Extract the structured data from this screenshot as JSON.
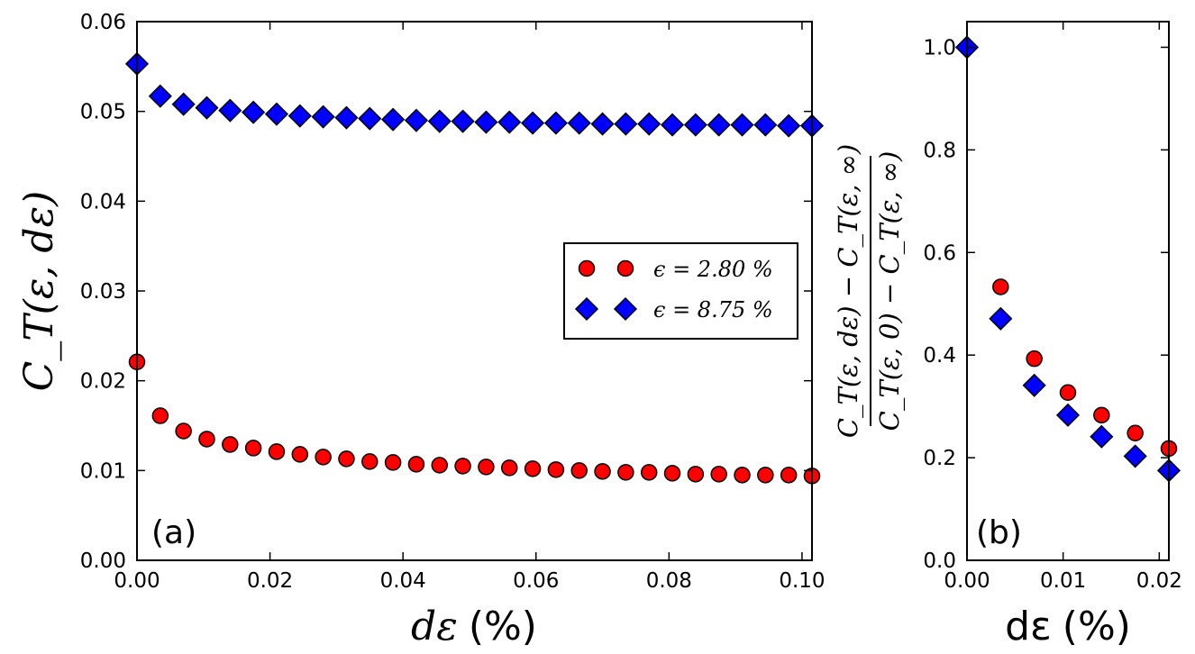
{
  "colors": {
    "series_a": "#ff0000",
    "series_b": "#0000ff",
    "edge": "#000000"
  },
  "chart_data": [
    {
      "panel": "(a)",
      "type": "scatter",
      "xlabel_symbol": "dε",
      "xlabel_unit": "(%)",
      "ylabel": "C_T(ε, dε)",
      "xlim": [
        0,
        0.1015
      ],
      "ylim": [
        0,
        0.06
      ],
      "xticks": [
        "0.00",
        "0.02",
        "0.04",
        "0.06",
        "0.08",
        "0.10"
      ],
      "yticks": [
        "0.00",
        "0.01",
        "0.02",
        "0.03",
        "0.04",
        "0.05",
        "0.06"
      ],
      "legend": {
        "placement": "center-right",
        "entries": [
          "ϵ = 2.80 %",
          "ϵ = 8.75 %"
        ]
      },
      "series": [
        {
          "name": "ϵ = 2.80 %",
          "marker": "circle",
          "color": "#ff0000",
          "x": [
            0,
            0.0035,
            0.007,
            0.0105,
            0.014,
            0.0175,
            0.021,
            0.0245,
            0.028,
            0.0315,
            0.035,
            0.0385,
            0.042,
            0.0455,
            0.049,
            0.0525,
            0.056,
            0.0595,
            0.063,
            0.0665,
            0.07,
            0.0735,
            0.077,
            0.0805,
            0.084,
            0.0875,
            0.091,
            0.0945,
            0.098,
            0.1015
          ],
          "y": [
            0.0221,
            0.0161,
            0.0144,
            0.0135,
            0.0129,
            0.0125,
            0.0121,
            0.0118,
            0.0115,
            0.0113,
            0.011,
            0.0109,
            0.0107,
            0.0106,
            0.0105,
            0.0104,
            0.0103,
            0.0102,
            0.0101,
            0.01,
            0.0099,
            0.0098,
            0.0098,
            0.0097,
            0.0096,
            0.0096,
            0.0095,
            0.0095,
            0.0095,
            0.0094
          ]
        },
        {
          "name": "ϵ = 8.75 %",
          "marker": "diamond",
          "color": "#0000ff",
          "x": [
            0,
            0.0035,
            0.007,
            0.0105,
            0.014,
            0.0175,
            0.021,
            0.0245,
            0.028,
            0.0315,
            0.035,
            0.0385,
            0.042,
            0.0455,
            0.049,
            0.0525,
            0.056,
            0.0595,
            0.063,
            0.0665,
            0.07,
            0.0735,
            0.077,
            0.0805,
            0.084,
            0.0875,
            0.091,
            0.0945,
            0.098,
            0.1015
          ],
          "y": [
            0.0553,
            0.0517,
            0.0508,
            0.0504,
            0.0501,
            0.0499,
            0.0497,
            0.0495,
            0.0494,
            0.0493,
            0.0492,
            0.0491,
            0.049,
            0.0489,
            0.0489,
            0.0488,
            0.0488,
            0.0487,
            0.0487,
            0.0487,
            0.0486,
            0.0486,
            0.0486,
            0.0485,
            0.0485,
            0.0485,
            0.0485,
            0.0485,
            0.0484,
            0.0484
          ]
        }
      ]
    },
    {
      "panel": "(b)",
      "type": "scatter",
      "xlabel_symbol": "dε",
      "xlabel_unit": "(%)",
      "ylabel_numerator": "C_T(ε, dε) − C_T(ε, ∞)",
      "ylabel_denominator": "C_T(ε, 0) − C_T(ε, ∞)",
      "xlim": [
        0,
        0.021
      ],
      "ylim": [
        0,
        1.05
      ],
      "xticks": [
        "0.00",
        "0.01",
        "0.02"
      ],
      "yticks": [
        "0.0",
        "0.2",
        "0.4",
        "0.6",
        "0.8",
        "1.0"
      ],
      "series": [
        {
          "name": "ϵ = 2.80 %",
          "marker": "circle",
          "color": "#ff0000",
          "x": [
            0.0035,
            0.007,
            0.0105,
            0.014,
            0.0175,
            0.021
          ],
          "y": [
            0.533,
            0.393,
            0.327,
            0.283,
            0.248,
            0.218
          ]
        },
        {
          "name": "ϵ = 8.75 %",
          "marker": "diamond",
          "color": "#0000ff",
          "x": [
            0,
            0.0035,
            0.007,
            0.0105,
            0.014,
            0.0175,
            0.021
          ],
          "y": [
            1.0,
            0.471,
            0.341,
            0.283,
            0.241,
            0.203,
            0.175
          ]
        }
      ]
    }
  ]
}
